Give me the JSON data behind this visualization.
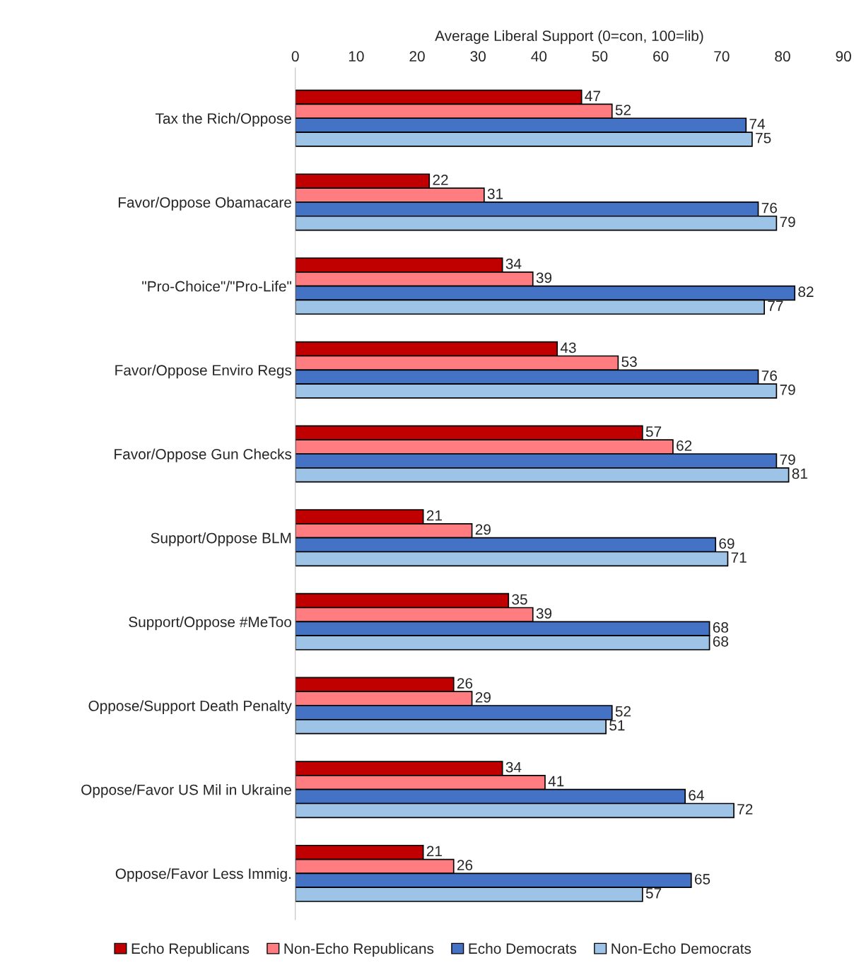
{
  "chart_data": {
    "type": "bar",
    "orientation": "horizontal",
    "xlabel": "Average Liberal Support (0=con, 100=lib)",
    "categories": [
      "Tax the Rich/Oppose",
      "Favor/Oppose Obamacare",
      "\"Pro-Choice\"/\"Pro-Life\"",
      "Favor/Oppose Enviro Regs",
      "Favor/Oppose Gun Checks",
      "Support/Oppose BLM",
      "Support/Oppose #MeToo",
      "Oppose/Support Death Penalty",
      "Oppose/Favor US Mil in Ukraine",
      "Oppose/Favor Less Immig."
    ],
    "series": [
      {
        "name": "Echo Republicans",
        "color": "#c00000",
        "values": [
          47,
          22,
          34,
          43,
          57,
          21,
          35,
          26,
          34,
          21
        ]
      },
      {
        "name": "Non-Echo Republicans",
        "color": "#ff7c80",
        "values": [
          52,
          31,
          39,
          53,
          62,
          29,
          39,
          29,
          41,
          26
        ]
      },
      {
        "name": "Echo Democrats",
        "color": "#4472c4",
        "values": [
          74,
          76,
          82,
          76,
          79,
          69,
          68,
          52,
          64,
          65
        ]
      },
      {
        "name": "Non-Echo Democrats",
        "color": "#9dc3e6",
        "values": [
          75,
          79,
          77,
          79,
          81,
          71,
          68,
          51,
          72,
          57
        ]
      }
    ],
    "xlim": [
      0,
      90
    ],
    "xticks": [
      0,
      10,
      20,
      30,
      40,
      50,
      60,
      70,
      80,
      90
    ],
    "data_labels": true,
    "grid": false,
    "legend": "bottom"
  }
}
